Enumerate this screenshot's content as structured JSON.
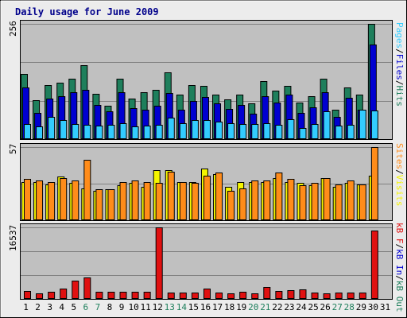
{
  "title": "Daily usage for June 2009",
  "colors": {
    "hits": "#1e7f5c",
    "files": "#0000d0",
    "pages": "#33ccff",
    "visits": "#f5f500",
    "sites": "#ff8c1a",
    "kb": "#e01010",
    "weekend_label": "#1e7f5c",
    "weekday_label": "#000000"
  },
  "legends": {
    "hits_panel": [
      {
        "text": "Pages",
        "color": "#33ccff"
      },
      {
        "text": "/",
        "color": "#000000"
      },
      {
        "text": "Files",
        "color": "#0000d0"
      },
      {
        "text": "/",
        "color": "#000000"
      },
      {
        "text": "Hits",
        "color": "#1e7f5c"
      }
    ],
    "visits_panel": [
      {
        "text": "Sites",
        "color": "#ff8c1a"
      },
      {
        "text": "/",
        "color": "#000000"
      },
      {
        "text": "Visits",
        "color": "#f5f500"
      }
    ],
    "kb_panel": [
      {
        "text": "kB F",
        "color": "#e01010"
      },
      {
        "text": "/",
        "color": "#000000"
      },
      {
        "text": "kB In",
        "color": "#0000d0"
      },
      {
        "text": "/",
        "color": "#000000"
      },
      {
        "text": "kB Out",
        "color": "#1e7f5c"
      }
    ]
  },
  "chart_data": [
    {
      "type": "bar",
      "name": "hits-files-pages",
      "ymax_label": "256",
      "ylim": [
        0,
        256
      ],
      "categories": [
        "1",
        "2",
        "3",
        "4",
        "5",
        "6",
        "7",
        "8",
        "9",
        "10",
        "11",
        "12",
        "13",
        "14",
        "15",
        "16",
        "17",
        "18",
        "19",
        "20",
        "21",
        "22",
        "23",
        "24",
        "25",
        "26",
        "27",
        "28",
        "29",
        "30",
        "31"
      ],
      "series": [
        {
          "name": "Hits",
          "values": [
            145,
            86,
            120,
            125,
            135,
            165,
            100,
            75,
            135,
            90,
            105,
            110,
            148,
            98,
            120,
            118,
            98,
            88,
            98,
            80,
            128,
            108,
            118,
            82,
            95,
            135,
            65,
            115,
            98,
            256,
            null
          ]
        },
        {
          "name": "Files",
          "values": [
            115,
            58,
            90,
            95,
            105,
            110,
            76,
            62,
            104,
            68,
            66,
            75,
            103,
            66,
            84,
            94,
            80,
            67,
            76,
            57,
            96,
            81,
            98,
            58,
            70,
            105,
            49,
            91,
            66,
            210,
            null
          ]
        },
        {
          "name": "Pages",
          "values": [
            33,
            29,
            49,
            42,
            34,
            32,
            30,
            31,
            35,
            28,
            30,
            31,
            48,
            35,
            42,
            42,
            38,
            35,
            33,
            33,
            36,
            32,
            45,
            25,
            33,
            61,
            30,
            32,
            65,
            63,
            null
          ]
        }
      ],
      "grid": true
    },
    {
      "type": "bar",
      "name": "visits-sites",
      "ymax_label": "57",
      "ylim": [
        0,
        57
      ],
      "categories": [
        "1",
        "2",
        "3",
        "4",
        "5",
        "6",
        "7",
        "8",
        "9",
        "10",
        "11",
        "12",
        "13",
        "14",
        "15",
        "16",
        "17",
        "18",
        "19",
        "20",
        "21",
        "22",
        "23",
        "24",
        "25",
        "26",
        "27",
        "28",
        "29",
        "30",
        "31"
      ],
      "series": [
        {
          "name": "Visits",
          "values": [
            30,
            30,
            28,
            34,
            29,
            25,
            23,
            24,
            27,
            29,
            26,
            39,
            39,
            30,
            30,
            40,
            36,
            26,
            30,
            30,
            30,
            33,
            30,
            29,
            27,
            33,
            26,
            29,
            28,
            35,
            null
          ]
        },
        {
          "name": "Sites",
          "values": [
            32,
            31,
            30,
            33,
            31,
            47,
            24,
            24,
            30,
            31,
            30,
            29,
            38,
            30,
            29,
            35,
            37,
            23,
            25,
            31,
            31,
            37,
            32,
            27,
            29,
            33,
            28,
            31,
            28,
            57,
            null
          ]
        }
      ],
      "grid": true
    },
    {
      "type": "bar",
      "name": "kb",
      "ymax_label": "16537",
      "ylim": [
        0,
        16537
      ],
      "categories": [
        "1",
        "2",
        "3",
        "4",
        "5",
        "6",
        "7",
        "8",
        "9",
        "10",
        "11",
        "12",
        "13",
        "14",
        "15",
        "16",
        "17",
        "18",
        "19",
        "20",
        "21",
        "22",
        "23",
        "24",
        "25",
        "26",
        "27",
        "28",
        "29",
        "30",
        "31"
      ],
      "series": [
        {
          "name": "kB F",
          "values": [
            1800,
            1200,
            1600,
            2400,
            4200,
            5000,
            1600,
            1700,
            1600,
            1600,
            1700,
            16537,
            1500,
            1500,
            1500,
            2300,
            1500,
            1200,
            1600,
            1200,
            2800,
            1900,
            2000,
            2200,
            1500,
            1200,
            1500,
            1500,
            1500,
            15800,
            null
          ]
        }
      ],
      "grid": true
    }
  ],
  "x_labels": [
    {
      "text": "1",
      "weekend": false
    },
    {
      "text": "2",
      "weekend": false
    },
    {
      "text": "3",
      "weekend": false
    },
    {
      "text": "4",
      "weekend": false
    },
    {
      "text": "5",
      "weekend": false
    },
    {
      "text": "6",
      "weekend": true
    },
    {
      "text": "7",
      "weekend": true
    },
    {
      "text": "8",
      "weekend": false
    },
    {
      "text": "9",
      "weekend": false
    },
    {
      "text": "10",
      "weekend": false
    },
    {
      "text": "11",
      "weekend": false
    },
    {
      "text": "12",
      "weekend": false
    },
    {
      "text": "13",
      "weekend": true
    },
    {
      "text": "14",
      "weekend": true
    },
    {
      "text": "15",
      "weekend": false
    },
    {
      "text": "16",
      "weekend": false
    },
    {
      "text": "17",
      "weekend": false
    },
    {
      "text": "18",
      "weekend": false
    },
    {
      "text": "19",
      "weekend": false
    },
    {
      "text": "20",
      "weekend": true
    },
    {
      "text": "21",
      "weekend": true
    },
    {
      "text": "22",
      "weekend": false
    },
    {
      "text": "23",
      "weekend": false
    },
    {
      "text": "24",
      "weekend": false
    },
    {
      "text": "25",
      "weekend": false
    },
    {
      "text": "26",
      "weekend": false
    },
    {
      "text": "27",
      "weekend": true
    },
    {
      "text": "28",
      "weekend": true
    },
    {
      "text": "29",
      "weekend": false
    },
    {
      "text": "30",
      "weekend": false
    },
    {
      "text": "31",
      "weekend": false
    }
  ]
}
